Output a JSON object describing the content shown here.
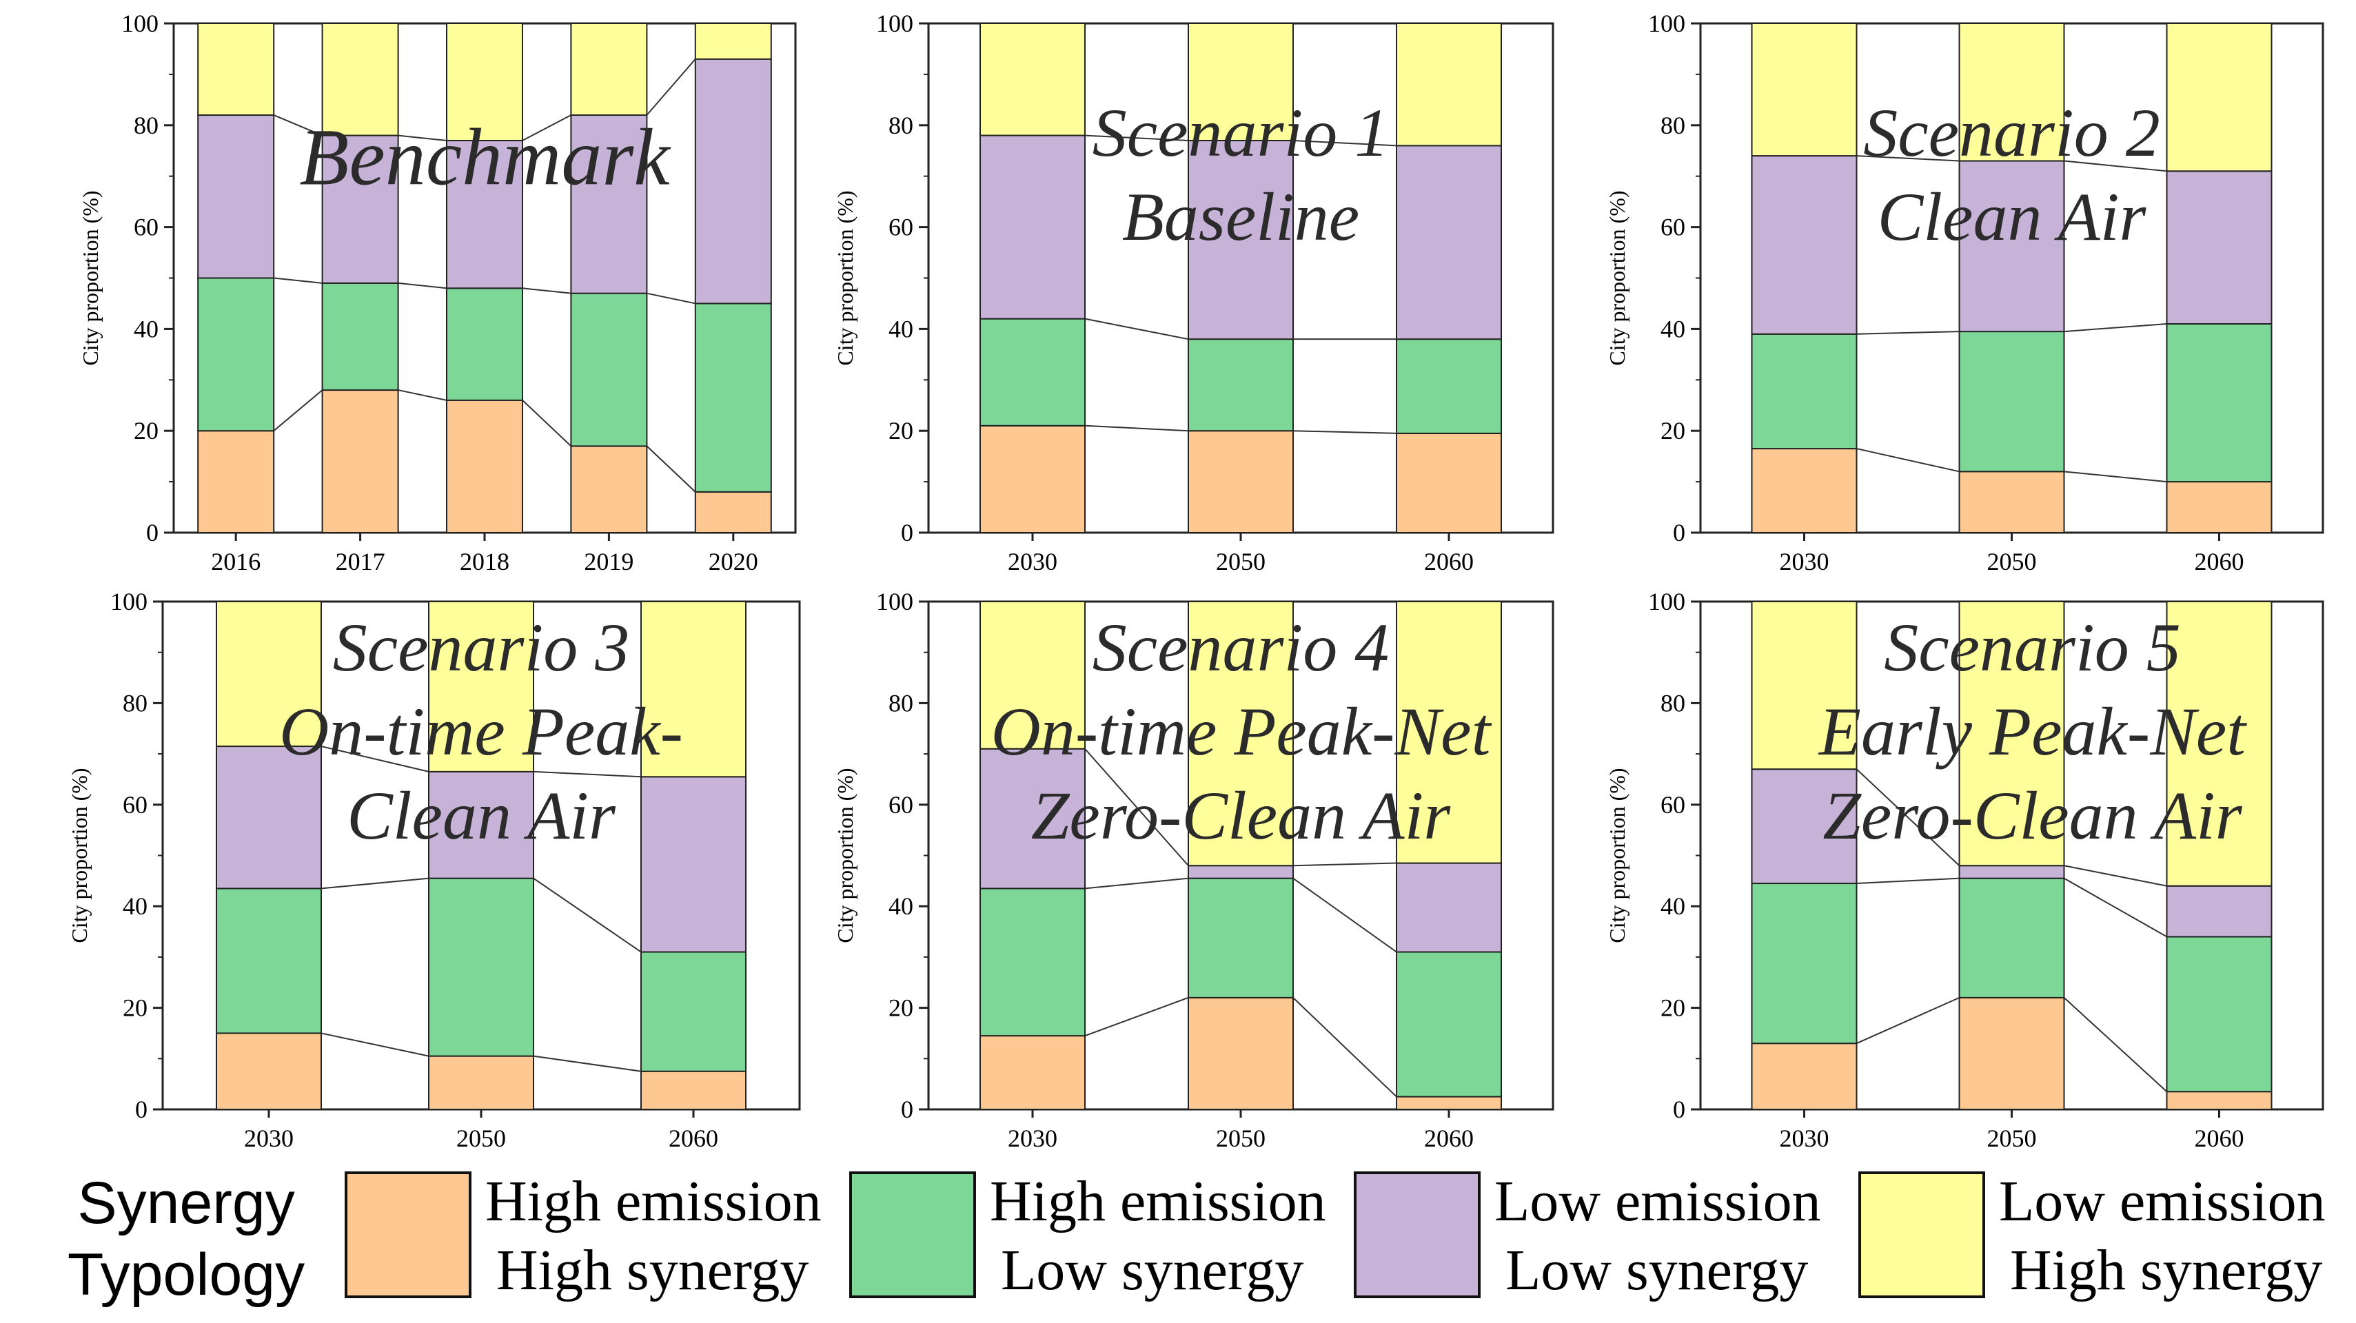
{
  "chart_data": [
    {
      "type": "bar",
      "stacked": true,
      "title": "Benchmark",
      "ylabel": "City proportion (%)",
      "ylim": [
        0,
        100
      ],
      "yticks": [
        "0",
        "20",
        "40",
        "60",
        "80",
        "100"
      ],
      "categories": [
        "2016",
        "2017",
        "2018",
        "2019",
        "2020"
      ],
      "series": [
        {
          "name": "High emission High synergy",
          "values": [
            20,
            28,
            26,
            17,
            8
          ]
        },
        {
          "name": "High emission Low synergy",
          "values": [
            30,
            21,
            22,
            30,
            37
          ]
        },
        {
          "name": "Low emission Low synergy",
          "values": [
            32,
            29,
            29,
            35,
            48
          ]
        },
        {
          "name": "Low emission High synergy",
          "values": [
            18,
            22,
            23,
            18,
            7
          ]
        }
      ],
      "title_lines": [
        "Benchmark"
      ]
    },
    {
      "type": "bar",
      "stacked": true,
      "title": "Scenario 1 Baseline",
      "ylabel": "City proportion (%)",
      "ylim": [
        0,
        100
      ],
      "yticks": [
        "0",
        "20",
        "40",
        "60",
        "80",
        "100"
      ],
      "categories": [
        "2030",
        "2050",
        "2060"
      ],
      "series": [
        {
          "name": "High emission High synergy",
          "values": [
            21,
            20,
            19.5
          ]
        },
        {
          "name": "High emission Low synergy",
          "values": [
            21,
            18,
            18.5
          ]
        },
        {
          "name": "Low emission Low synergy",
          "values": [
            36,
            39,
            38
          ]
        },
        {
          "name": "Low emission High synergy",
          "values": [
            22,
            23,
            24
          ]
        }
      ],
      "title_lines": [
        "Scenario 1",
        "Baseline"
      ]
    },
    {
      "type": "bar",
      "stacked": true,
      "title": "Scenario 2 Clean Air",
      "ylabel": "City proportion (%)",
      "ylim": [
        0,
        100
      ],
      "yticks": [
        "0",
        "20",
        "40",
        "60",
        "80",
        "100"
      ],
      "categories": [
        "2030",
        "2050",
        "2060"
      ],
      "series": [
        {
          "name": "High emission High synergy",
          "values": [
            16.5,
            12,
            10
          ]
        },
        {
          "name": "High emission Low synergy",
          "values": [
            22.5,
            27.5,
            31
          ]
        },
        {
          "name": "Low emission Low synergy",
          "values": [
            35,
            33.5,
            30
          ]
        },
        {
          "name": "Low emission High synergy",
          "values": [
            26,
            27,
            29
          ]
        }
      ],
      "title_lines": [
        "Scenario 2",
        "Clean Air"
      ]
    },
    {
      "type": "bar",
      "stacked": true,
      "title": "Scenario 3 On-time Peak-Clean Air",
      "ylabel": "City proportion (%)",
      "ylim": [
        0,
        100
      ],
      "yticks": [
        "0",
        "20",
        "40",
        "60",
        "80",
        "100"
      ],
      "categories": [
        "2030",
        "2050",
        "2060"
      ],
      "series": [
        {
          "name": "High emission High synergy",
          "values": [
            15,
            10.5,
            7.5
          ]
        },
        {
          "name": "High emission Low synergy",
          "values": [
            28.5,
            35,
            23.5
          ]
        },
        {
          "name": "Low emission Low synergy",
          "values": [
            28,
            21,
            34.5
          ]
        },
        {
          "name": "Low emission High synergy",
          "values": [
            28.5,
            33.5,
            34.5
          ]
        }
      ],
      "title_lines": [
        "Scenario 3",
        "On-time Peak-",
        "Clean Air"
      ]
    },
    {
      "type": "bar",
      "stacked": true,
      "title": "Scenario 4 On-time Peak-Net Zero-Clean Air",
      "ylabel": "City proportion (%)",
      "ylim": [
        0,
        100
      ],
      "yticks": [
        "0",
        "20",
        "40",
        "60",
        "80",
        "100"
      ],
      "categories": [
        "2030",
        "2050",
        "2060"
      ],
      "series": [
        {
          "name": "High emission High synergy",
          "values": [
            14.5,
            22,
            2.5
          ]
        },
        {
          "name": "High emission Low synergy",
          "values": [
            29,
            23.5,
            28.5
          ]
        },
        {
          "name": "Low emission Low synergy",
          "values": [
            27.5,
            2.5,
            17.5
          ]
        },
        {
          "name": "Low emission High synergy",
          "values": [
            29,
            52,
            51.5
          ]
        }
      ],
      "title_lines": [
        "Scenario 4",
        "On-time Peak-Net",
        "Zero-Clean Air"
      ]
    },
    {
      "type": "bar",
      "stacked": true,
      "title": "Scenario 5 Early Peak-Net Zero-Clean Air",
      "ylabel": "City proportion (%)",
      "ylim": [
        0,
        100
      ],
      "yticks": [
        "0",
        "20",
        "40",
        "60",
        "80",
        "100"
      ],
      "categories": [
        "2030",
        "2050",
        "2060"
      ],
      "series": [
        {
          "name": "High emission High synergy",
          "values": [
            13,
            22,
            3.5
          ]
        },
        {
          "name": "High emission Low synergy",
          "values": [
            31.5,
            23.5,
            30.5
          ]
        },
        {
          "name": "Low emission Low synergy",
          "values": [
            22.5,
            2.5,
            10
          ]
        },
        {
          "name": "Low emission High synergy",
          "values": [
            33,
            52,
            56
          ]
        }
      ],
      "title_lines": [
        "Scenario 5",
        "Early Peak-Net",
        "Zero-Clean Air"
      ]
    }
  ],
  "legend": {
    "title_line1": "Synergy",
    "title_line2": "Typology",
    "items": [
      {
        "line1": "High emission",
        "line2": "High synergy",
        "color": "#FDC891"
      },
      {
        "line1": "High emission",
        "line2": "Low synergy",
        "color": "#7DD898"
      },
      {
        "line1": "Low emission",
        "line2": "Low synergy",
        "color": "#C7B3D7"
      },
      {
        "line1": "Low emission",
        "line2": "High synergy",
        "color": "#FEFE9A"
      }
    ]
  }
}
